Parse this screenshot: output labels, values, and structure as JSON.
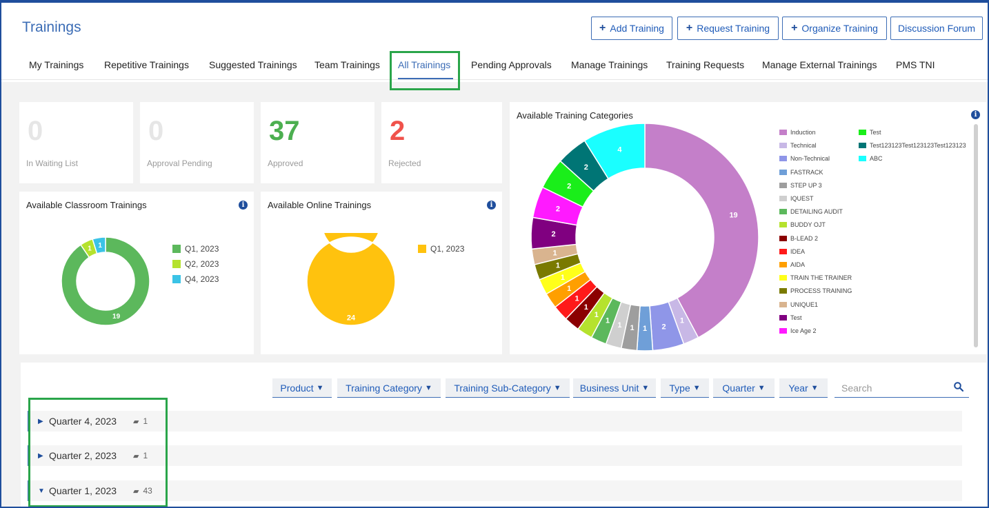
{
  "page": {
    "title": "Trainings"
  },
  "actions": [
    {
      "label": "Add Training",
      "plus": true
    },
    {
      "label": "Request Training",
      "plus": true
    },
    {
      "label": "Organize Training",
      "plus": true
    },
    {
      "label": "Discussion Forum",
      "plus": false
    }
  ],
  "tabs": [
    {
      "label": "My Trainings"
    },
    {
      "label": "Repetitive Trainings"
    },
    {
      "label": "Suggested Trainings"
    },
    {
      "label": "Team Trainings"
    },
    {
      "label": "All Trainings",
      "active": true
    },
    {
      "label": "Pending Approvals"
    },
    {
      "label": "Manage Trainings"
    },
    {
      "label": "Training Requests"
    },
    {
      "label": "Manage External Trainings"
    },
    {
      "label": "PMS TNI"
    }
  ],
  "stats": [
    {
      "value": "0",
      "label": "In Waiting List",
      "color": "#e6e6e6"
    },
    {
      "value": "0",
      "label": "Approval Pending",
      "color": "#e6e6e6"
    },
    {
      "value": "37",
      "label": "Approved",
      "color": "#4caf50"
    },
    {
      "value": "2",
      "label": "Rejected",
      "color": "#f0524b"
    }
  ],
  "icons": {
    "info": "info-icon",
    "search": "search-icon",
    "filter": "funnel-icon",
    "book": "book-icon"
  },
  "info_glyph": "i",
  "chart_data": [
    {
      "type": "pie",
      "donut": true,
      "title": "Available Classroom Trainings",
      "categories": [
        "Q1, 2023",
        "Q2, 2023",
        "Q4, 2023"
      ],
      "values": [
        19,
        1,
        1
      ],
      "colors": [
        "#5cb85c",
        "#b5e22e",
        "#3bc3e6"
      ],
      "legend_position": "right"
    },
    {
      "type": "pie",
      "donut": true,
      "title": "Available Online Trainings",
      "categories": [
        "Q1, 2023"
      ],
      "values": [
        24
      ],
      "colors": [
        "#ffc20e"
      ],
      "legend_position": "right"
    },
    {
      "type": "pie",
      "donut": true,
      "title": "Available Training Categories",
      "categories": [
        "Induction",
        "Technical",
        "Non-Technical",
        "FASTRACK",
        "STEP UP 3",
        "IQUEST",
        "DETAILING AUDIT",
        "BUDDY OJT",
        "B-LEAD 2",
        "IDEA",
        "AIDA",
        "TRAIN THE TRAINER",
        "PROCESS TRAINING",
        "UNIQUE1",
        "Test",
        "Ice Age 2",
        "Test",
        "Test123123Test123123Test123123",
        "ABC"
      ],
      "values": [
        19,
        1,
        2,
        1,
        1,
        1,
        1,
        1,
        1,
        1,
        1,
        1,
        1,
        1,
        2,
        2,
        2,
        2,
        4
      ],
      "colors": [
        "#c47fc9",
        "#c8b8e6",
        "#8f96e8",
        "#6f9fd8",
        "#9e9e9e",
        "#cfcfcf",
        "#5cb85c",
        "#b5e22e",
        "#8b0000",
        "#ff1a1a",
        "#ff9f00",
        "#ffff1a",
        "#7a7a00",
        "#d9b48f",
        "#800080",
        "#ff1aff",
        "#1aee1a",
        "#007575",
        "#1affff"
      ],
      "label_colors": [
        "#ffffff",
        "#ffffff",
        "#ffffff",
        "#ffffff",
        "#ffffff",
        "#ffffff",
        "#ffffff",
        "#ffffff",
        "#ffffff",
        "#ffffff",
        "#ffffff",
        "#ffffff",
        "#ffffff",
        "#ffffff",
        "#ffffff",
        "#ffffff",
        "#ffffff",
        "#ffffff",
        "#ffffff"
      ],
      "legend_position": "right"
    }
  ],
  "filters": [
    "Product",
    "Training Category",
    "Training Sub-Category",
    "Business Unit",
    "Type",
    "Quarter",
    "Year"
  ],
  "search": {
    "placeholder": "Search",
    "value": ""
  },
  "quarters": [
    {
      "label": "Quarter 4, 2023",
      "count": "1",
      "expanded": false
    },
    {
      "label": "Quarter 2, 2023",
      "count": "1",
      "expanded": false
    },
    {
      "label": "Quarter 1, 2023",
      "count": "43",
      "expanded": true
    }
  ]
}
